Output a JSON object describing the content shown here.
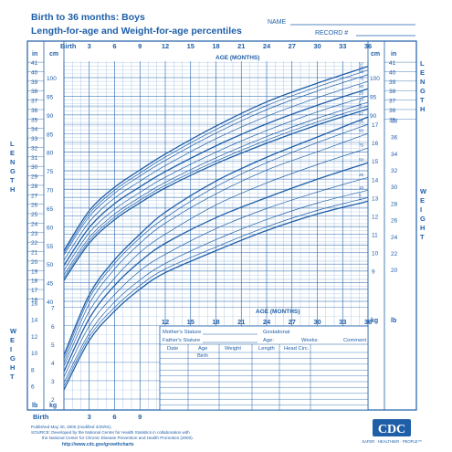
{
  "header": {
    "title": "Birth to 36 months: Boys",
    "subtitle": "Length-for-age and Weight-for-age percentiles",
    "name_label": "NAME",
    "record_label": "RECORD #"
  },
  "labels": {
    "birth": "Birth",
    "age_months": "AGE (MONTHS)",
    "in": "in",
    "cm": "cm",
    "kg": "kg",
    "lb": "lb",
    "length_vertical": "LENGTH",
    "weight_vertical": "WEIGHT"
  },
  "table": {
    "mothers_stature": "Mother's Stature",
    "fathers_stature": "Father's Stature",
    "gestational": "Gestational",
    "age": "Age:",
    "weeks": "Weeks",
    "comment": "Comment",
    "columns": [
      "Date",
      "Age",
      "Weight",
      "Length",
      "Head Circ."
    ],
    "birth_row": "Birth"
  },
  "footer": {
    "published": "Published May 30, 2000 (modified 4/20/01).",
    "source1": "SOURCE: Developed by the National Center for Health Statistics in collaboration with",
    "source2": "the National Center for Chronic Disease Prevention and Health Promotion (2000).",
    "url": "http://www.cdc.gov/growthcharts",
    "logo": "CDC",
    "tagline": "SAFER · HEALTHIER · PEOPLE™"
  },
  "colors": {
    "ink": "#1f5fa8",
    "grid": "#8fb3dc",
    "bg": "#ffffff"
  },
  "chart_data": [
    {
      "type": "line",
      "title": "Length-for-age percentiles",
      "xlabel": "AGE (MONTHS)",
      "ylabel": "LENGTH",
      "x_ticks": [
        "Birth",
        "3",
        "6",
        "9",
        "12",
        "15",
        "18",
        "21",
        "24",
        "27",
        "30",
        "33",
        "36"
      ],
      "cm_ticks": [
        "100",
        "95",
        "90",
        "85",
        "80",
        "75",
        "70",
        "65",
        "60",
        "55",
        "50",
        "45",
        "40"
      ],
      "in_ticks_left": [
        "41",
        "40",
        "39",
        "38",
        "37",
        "36",
        "35",
        "34",
        "33",
        "32",
        "31",
        "30",
        "29",
        "28",
        "27",
        "26",
        "25",
        "24",
        "23",
        "22",
        "21",
        "20",
        "19",
        "18",
        "17",
        "16"
      ],
      "in_ticks_right": [
        "41",
        "40",
        "39",
        "38",
        "37",
        "36",
        "35"
      ],
      "xlim": [
        0,
        36
      ],
      "ylim_cm": [
        37,
        105
      ],
      "x": [
        0,
        3,
        6,
        9,
        12,
        18,
        24,
        30,
        36
      ],
      "series": [
        {
          "name": "97",
          "values": [
            53.6,
            64.3,
            70.6,
            75.2,
            79.5,
            87.0,
            93.5,
            98.5,
            103.0
          ]
        },
        {
          "name": "95",
          "values": [
            53.0,
            63.5,
            69.8,
            74.4,
            78.7,
            86.1,
            92.5,
            97.5,
            102.0
          ]
        },
        {
          "name": "90",
          "values": [
            52.4,
            62.7,
            69.0,
            73.6,
            77.8,
            85.1,
            91.4,
            96.4,
            100.8
          ]
        },
        {
          "name": "75",
          "values": [
            51.0,
            61.3,
            67.7,
            72.2,
            76.4,
            83.6,
            89.6,
            94.6,
            99.0
          ]
        },
        {
          "name": "50",
          "values": [
            49.6,
            59.8,
            66.2,
            70.7,
            74.8,
            81.7,
            87.6,
            92.6,
            97.0
          ]
        },
        {
          "name": "25",
          "values": [
            48.3,
            58.4,
            64.7,
            69.2,
            73.3,
            80.0,
            85.8,
            90.8,
            95.1
          ]
        },
        {
          "name": "10",
          "values": [
            47.1,
            57.1,
            63.4,
            67.9,
            71.9,
            78.5,
            84.2,
            89.1,
            93.4
          ]
        },
        {
          "name": "5",
          "values": [
            46.3,
            56.3,
            62.6,
            67.1,
            71.1,
            77.6,
            83.2,
            88.1,
            92.4
          ]
        },
        {
          "name": "3",
          "values": [
            45.6,
            55.6,
            61.9,
            66.4,
            70.4,
            76.9,
            82.4,
            87.3,
            91.6
          ]
        }
      ]
    },
    {
      "type": "line",
      "title": "Weight-for-age percentiles",
      "xlabel": "AGE (MONTHS)",
      "ylabel": "WEIGHT",
      "x_ticks_bottom": [
        "Birth",
        "3",
        "6",
        "9"
      ],
      "x_ticks_top": [
        "12",
        "15",
        "18",
        "21",
        "24",
        "27",
        "30",
        "33",
        "36"
      ],
      "kg_ticks_left": [
        "7",
        "6",
        "5",
        "4",
        "3",
        "2"
      ],
      "kg_ticks_right": [
        "17",
        "16",
        "15",
        "14",
        "13",
        "12",
        "11",
        "10",
        "9"
      ],
      "lb_ticks_left": [
        "16",
        "14",
        "12",
        "10",
        "8",
        "6"
      ],
      "lb_ticks_right": [
        "38",
        "36",
        "34",
        "32",
        "30",
        "28",
        "26",
        "24",
        "22",
        "20"
      ],
      "xlim": [
        0,
        36
      ],
      "ylim_kg": [
        1,
        18
      ],
      "x": [
        0,
        3,
        6,
        9,
        12,
        18,
        24,
        30,
        36
      ],
      "series": [
        {
          "name": "97",
          "values": [
            4.4,
            7.7,
            9.6,
            11.0,
            12.2,
            13.9,
            15.2,
            16.3,
            17.4
          ]
        },
        {
          "name": "95",
          "values": [
            4.2,
            7.5,
            9.4,
            10.8,
            11.9,
            13.6,
            14.9,
            16.0,
            17.0
          ]
        },
        {
          "name": "90",
          "values": [
            4.0,
            7.2,
            9.1,
            10.5,
            11.6,
            13.2,
            14.5,
            15.5,
            16.5
          ]
        },
        {
          "name": "75",
          "values": [
            3.8,
            6.8,
            8.6,
            10.0,
            11.0,
            12.6,
            13.8,
            14.8,
            15.7
          ]
        },
        {
          "name": "50",
          "values": [
            3.5,
            6.4,
            8.2,
            9.5,
            10.5,
            11.9,
            13.0,
            14.0,
            14.9
          ]
        },
        {
          "name": "25",
          "values": [
            3.2,
            6.0,
            7.7,
            9.0,
            9.9,
            11.3,
            12.4,
            13.3,
            14.1
          ]
        },
        {
          "name": "10",
          "values": [
            2.9,
            5.6,
            7.3,
            8.5,
            9.4,
            10.7,
            11.8,
            12.7,
            13.4
          ]
        },
        {
          "name": "5",
          "values": [
            2.7,
            5.4,
            7.0,
            8.2,
            9.1,
            10.3,
            11.4,
            12.3,
            13.0
          ]
        },
        {
          "name": "3",
          "values": [
            2.5,
            5.2,
            6.8,
            8.0,
            8.9,
            10.1,
            11.2,
            12.1,
            12.8
          ]
        }
      ]
    }
  ]
}
